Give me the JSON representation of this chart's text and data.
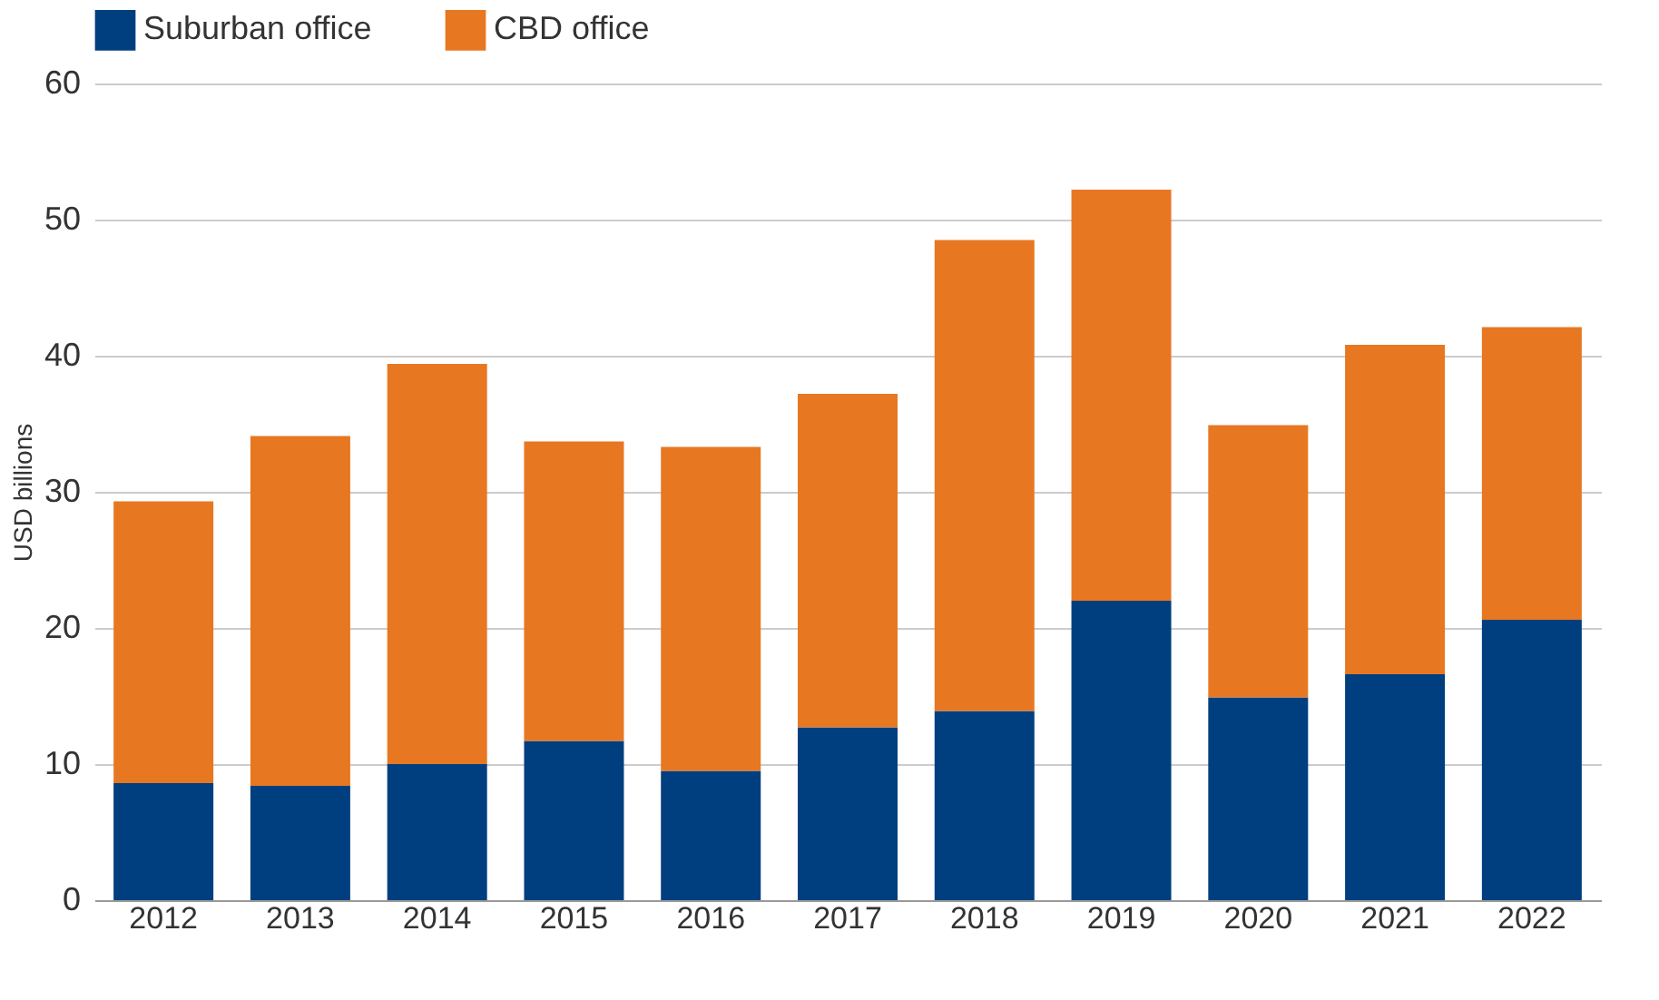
{
  "chart_data": {
    "type": "bar",
    "stacked": true,
    "ylabel": "USD billions",
    "categories": [
      "2012",
      "2013",
      "2014",
      "2015",
      "2016",
      "2017",
      "2018",
      "2019",
      "2020",
      "2021",
      "2022"
    ],
    "series": [
      {
        "name": "Suburban office",
        "color": "#003f7f",
        "values": [
          8.6,
          8.4,
          10.0,
          11.7,
          9.5,
          12.7,
          13.9,
          22.0,
          14.9,
          16.6,
          20.6
        ]
      },
      {
        "name": "CBD office",
        "color": "#e87722",
        "values": [
          20.7,
          25.7,
          29.4,
          22.0,
          23.8,
          24.5,
          34.6,
          30.2,
          20.0,
          24.2,
          21.5
        ]
      }
    ],
    "ylim": [
      0,
      60
    ],
    "yticks": [
      0,
      10,
      20,
      30,
      40,
      50,
      60
    ],
    "grid": "y",
    "legend": "top"
  }
}
